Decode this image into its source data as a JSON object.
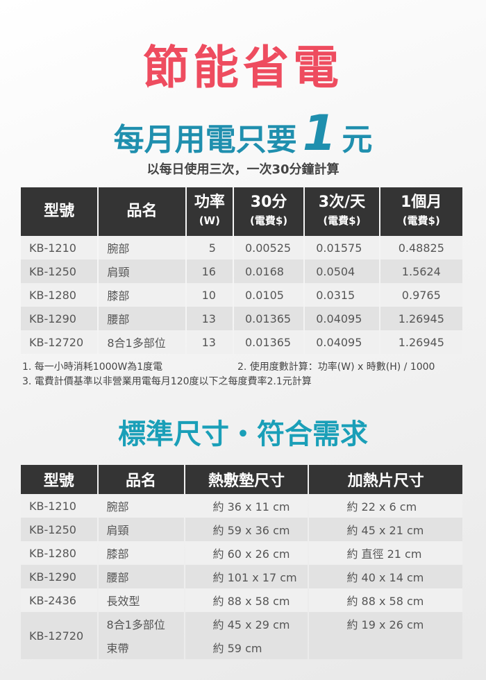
{
  "title": "節能省電",
  "subtitle": {
    "prefix": "每月用電只要",
    "number": "1",
    "suffix": "元"
  },
  "calc_basis": "以每日使用三次，一次30分鐘計算",
  "colors": {
    "title": "#ee4c5f",
    "subtitle": "#1f8fae",
    "section2": "#1a9fb8",
    "header_bg": "#343434"
  },
  "power_table": {
    "headers": [
      {
        "main": "型號",
        "sub": ""
      },
      {
        "main": "品名",
        "sub": ""
      },
      {
        "main": "功率",
        "sub": "(W)"
      },
      {
        "main": "30分",
        "sub": "(電費$)"
      },
      {
        "main": "3次/天",
        "sub": "(電費$)"
      },
      {
        "main": "1個月",
        "sub": "(電費$)"
      }
    ],
    "rows": [
      [
        "KB-1210",
        "腕部",
        "5",
        "0.00525",
        "0.01575",
        "0.48825"
      ],
      [
        "KB-1250",
        "肩頸",
        "16",
        "0.0168",
        "0.0504",
        "1.5624"
      ],
      [
        "KB-1280",
        "膝部",
        "10",
        "0.0105",
        "0.0315",
        "0.9765"
      ],
      [
        "KB-1290",
        "腰部",
        "13",
        "0.01365",
        "0.04095",
        "1.26945"
      ],
      [
        "KB-12720",
        "8合1多部位",
        "13",
        "0.01365",
        "0.04095",
        "1.26945"
      ]
    ]
  },
  "notes": [
    "1. 每一小時消耗1000W為1度電",
    "2. 使用度數計算：功率(W) x 時數(H) / 1000",
    "3. 電費計價基準以非營業用電每月120度以下之每度費率2.1元計算"
  ],
  "section2_title": "標準尺寸・符合需求",
  "size_table": {
    "headers": [
      "型號",
      "品名",
      "熱敷墊尺寸",
      "加熱片尺寸"
    ],
    "rows": [
      [
        "KB-1210",
        "腕部",
        "約 36 x 11 cm",
        "約 22 x 6 cm"
      ],
      [
        "KB-1250",
        "肩頸",
        "約 59 x 36 cm",
        "約 45 x 21 cm"
      ],
      [
        "KB-1280",
        "膝部",
        "約 60 x 26 cm",
        "約 直徑 21  cm"
      ],
      [
        "KB-1290",
        "腰部",
        "約 101 x 17 cm",
        "約 40 x 14 cm"
      ],
      [
        "KB-2436",
        "長效型",
        "約 88 x 58 cm",
        "約 88 x 58 cm"
      ]
    ],
    "last": {
      "model": "KB-12720",
      "items": [
        [
          "8合1多部位",
          "約 45 x 29 cm",
          "約 19 x 26 cm"
        ],
        [
          "束帶",
          "約 59 cm",
          ""
        ]
      ]
    }
  }
}
